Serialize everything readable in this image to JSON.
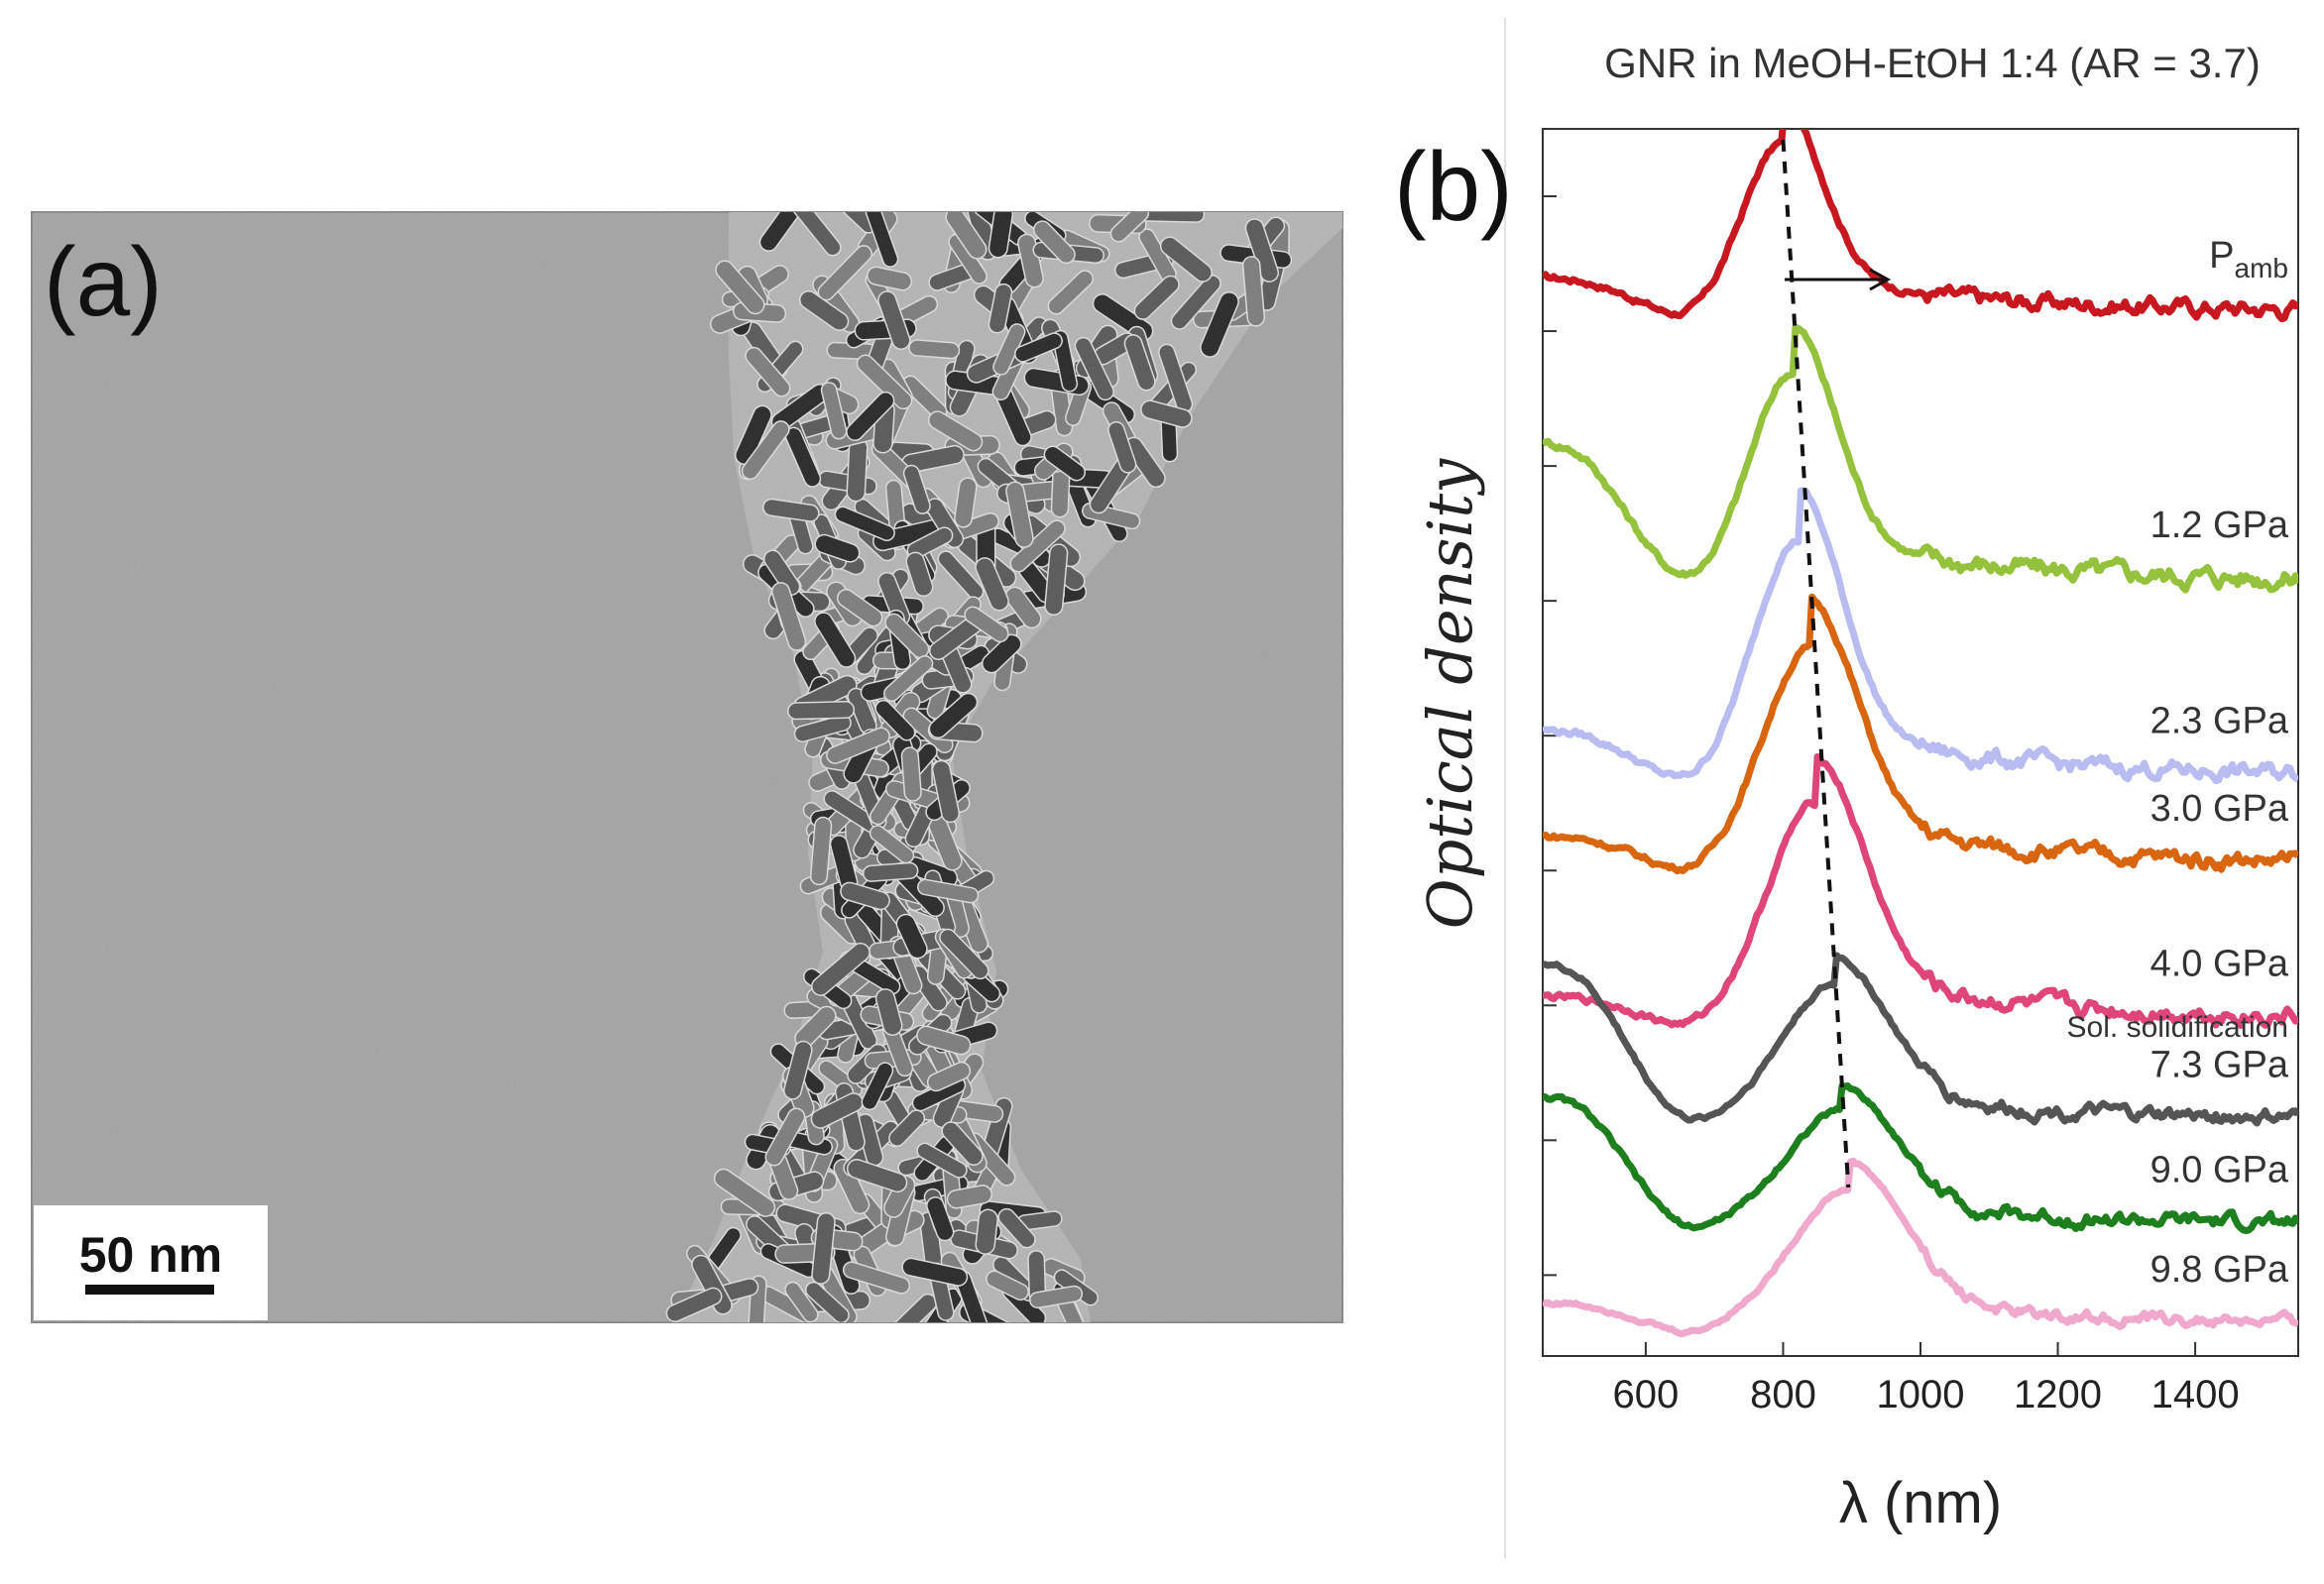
{
  "panel_a": {
    "label": "(a)",
    "scale_bar_label": "50 nm",
    "image_description_icon": "tem-micrograph-gold-nanorods"
  },
  "panel_b": {
    "label": "(b)"
  },
  "chart_data": {
    "type": "line",
    "title": "GNR in MeOH-EtOH 1:4 (AR = 3.7)",
    "xlabel": "λ (nm)",
    "ylabel": "Optical density",
    "xlim": [
      450,
      1550
    ],
    "xticks": [
      600,
      800,
      1000,
      1200,
      1400
    ],
    "yticks_unlabeled": true,
    "grid": false,
    "stacked_offsets": true,
    "annotations": [
      {
        "type": "dashed-line",
        "text": "",
        "description": "peak position trend"
      },
      {
        "type": "arrow",
        "text": "",
        "direction": "right"
      },
      {
        "type": "text",
        "text": "Sol. solidification"
      }
    ],
    "series": [
      {
        "name": "Pamb",
        "name_main": "P",
        "name_sub": "amb",
        "color": "#c8171f",
        "peak_nm": 800,
        "offset": 7.0,
        "amplitude": 1.25,
        "background": 0.15,
        "uv_bump": 0.18,
        "noise": 0.06
      },
      {
        "name": "1.2 GPa",
        "color": "#95c23d",
        "peak_nm": 815,
        "offset": 5.1,
        "amplitude": 1.55,
        "background": 0.05,
        "uv_bump": 0.75,
        "noise": 0.07
      },
      {
        "name": "2.3 GPa",
        "color": "#b9bcf0",
        "peak_nm": 822,
        "offset": 3.6,
        "amplitude": 1.75,
        "background": 0.1,
        "uv_bump": 0.25,
        "noise": 0.06
      },
      {
        "name": "3.0 GPa",
        "color": "#d9650f",
        "peak_nm": 840,
        "offset": 2.9,
        "amplitude": 1.6,
        "background": 0.15,
        "uv_bump": 0.15,
        "noise": 0.06
      },
      {
        "name": "4.0 GPa",
        "color": "#e0457a",
        "peak_nm": 848,
        "offset": 1.8,
        "amplitude": 1.6,
        "background": 0.1,
        "uv_bump": 0.12,
        "noise": 0.06
      },
      {
        "name": "7.3 GPa",
        "color": "#555555",
        "peak_nm": 875,
        "offset": 1.1,
        "amplitude": 1.0,
        "background": 0.05,
        "uv_bump": 0.85,
        "noise": 0.05
      },
      {
        "name": "9.0 GPa",
        "color": "#1d7f1d",
        "peak_nm": 885,
        "offset": 0.35,
        "amplitude": 0.85,
        "background": 0.02,
        "uv_bump": 0.7,
        "noise": 0.05
      },
      {
        "name": "9.8 GPa",
        "color": "#f0a8cc",
        "peak_nm": 895,
        "offset": -0.4,
        "amplitude": 1.0,
        "background": 0.03,
        "uv_bump": 0.12,
        "noise": 0.04
      }
    ],
    "ylim": [
      -0.6,
      8.5
    ]
  }
}
